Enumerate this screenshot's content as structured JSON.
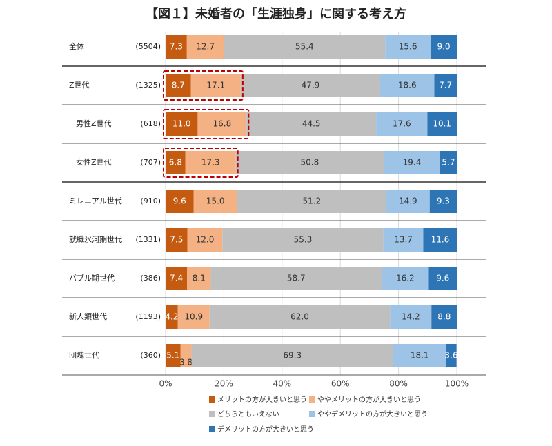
{
  "chart_data": {
    "type": "bar",
    "stacked": true,
    "orientation": "horizontal",
    "title": "【図１】未婚者の「生涯独身」に関する考え方",
    "categories": [
      "全体",
      "Z世代",
      "男性Z世代",
      "女性Z世代",
      "ミレニアル世代",
      "就職氷河期世代",
      "バブル期世代",
      "新人類世代",
      "団塊世代"
    ],
    "sample_sizes": [
      "(5504)",
      "(1325)",
      "(618)",
      "(707)",
      "(910)",
      "(1331)",
      "(386)",
      "(1193)",
      "(360)"
    ],
    "series": [
      {
        "name": "メリットの方が大きいと思う",
        "color": "#C55A11",
        "values": [
          7.3,
          8.7,
          11.0,
          6.8,
          9.6,
          7.5,
          7.4,
          4.2,
          5.1
        ]
      },
      {
        "name": "ややメリットの方が大きいと思う",
        "color": "#F4B183",
        "values": [
          12.7,
          17.1,
          16.8,
          17.3,
          15.0,
          12.0,
          8.1,
          10.9,
          3.8
        ]
      },
      {
        "name": "どちらともいえない",
        "color": "#BFBFBF",
        "values": [
          55.4,
          47.9,
          44.5,
          50.8,
          51.2,
          55.3,
          58.7,
          62.0,
          69.3
        ]
      },
      {
        "name": "ややデメリットの方が大きいと思う",
        "color": "#9DC3E6",
        "values": [
          15.6,
          18.6,
          17.6,
          19.4,
          14.9,
          13.7,
          16.2,
          14.2,
          18.1
        ]
      },
      {
        "name": "デメリットの方が大きいと思う",
        "color": "#2E75B6",
        "values": [
          9.0,
          7.7,
          10.1,
          5.7,
          9.3,
          11.6,
          9.6,
          8.8,
          3.6
        ]
      }
    ],
    "xlim": [
      0,
      100
    ],
    "xticks": [
      "0%",
      "20%",
      "40%",
      "60%",
      "80%",
      "100%"
    ],
    "highlighted_categories": [
      "Z世代",
      "男性Z世代",
      "女性Z世代"
    ],
    "legend_position": "bottom"
  }
}
